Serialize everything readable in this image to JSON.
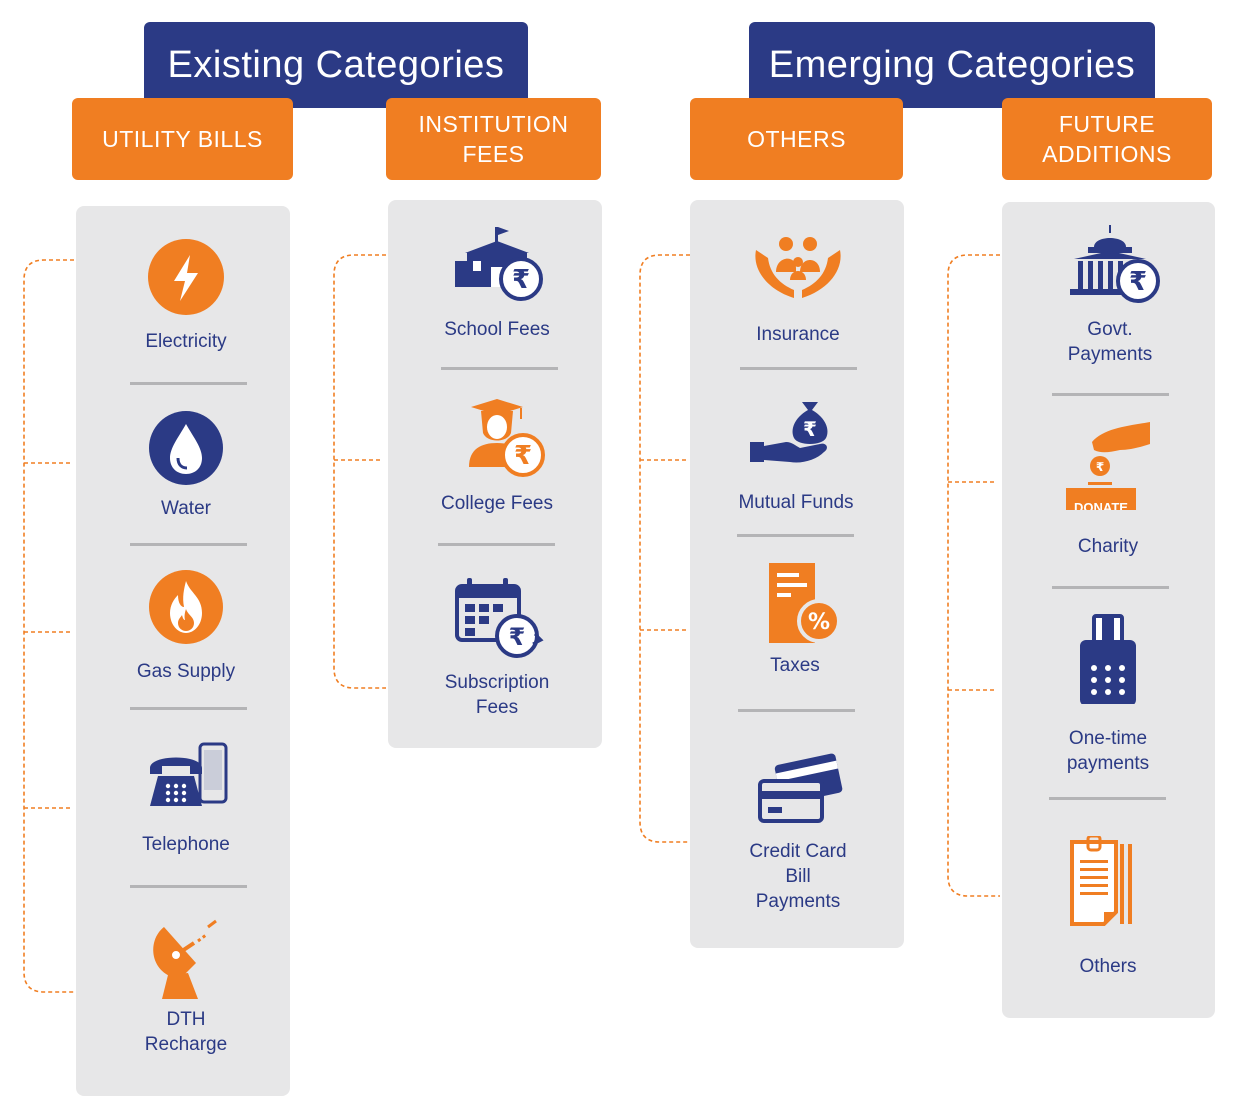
{
  "groups": [
    {
      "title": "Existing Categories"
    },
    {
      "title": "Emerging Categories"
    }
  ],
  "categories": [
    {
      "header": "UTILITY BILLS",
      "items": [
        {
          "label": "Electricity",
          "icon": "electricity-icon"
        },
        {
          "label": "Water",
          "icon": "water-drop-icon"
        },
        {
          "label": "Gas Supply",
          "icon": "gas-flame-icon"
        },
        {
          "label": "Telephone",
          "icon": "telephone-icon"
        },
        {
          "label": "DTH\nRecharge",
          "icon": "satellite-dish-icon"
        }
      ]
    },
    {
      "header": "INSTITUTION\nFEES",
      "items": [
        {
          "label": "School Fees",
          "icon": "school-rupee-icon"
        },
        {
          "label": "College Fees",
          "icon": "graduate-rupee-icon"
        },
        {
          "label": "Subscription\nFees",
          "icon": "calendar-rupee-icon"
        }
      ]
    },
    {
      "header": "OTHERS",
      "items": [
        {
          "label": "Insurance",
          "icon": "family-hands-icon"
        },
        {
          "label": "Mutual Funds",
          "icon": "money-bag-hand-icon"
        },
        {
          "label": "Taxes",
          "icon": "tax-document-icon"
        },
        {
          "label": "Credit Card\nBill\nPayments",
          "icon": "credit-cards-icon"
        }
      ]
    },
    {
      "header": "FUTURE\nADDITIONS",
      "items": [
        {
          "label": "Govt.\nPayments",
          "icon": "government-building-rupee-icon"
        },
        {
          "label": "Charity",
          "icon": "donate-box-icon",
          "badge": "DONATE"
        },
        {
          "label": "One-time\npayments",
          "icon": "card-terminal-icon"
        },
        {
          "label": "Others",
          "icon": "documents-icon"
        }
      ]
    }
  ],
  "colors": {
    "navy": "#2B3A85",
    "orange": "#F07E22",
    "panel": "#E7E7E8",
    "divider": "#B4B4B6"
  }
}
